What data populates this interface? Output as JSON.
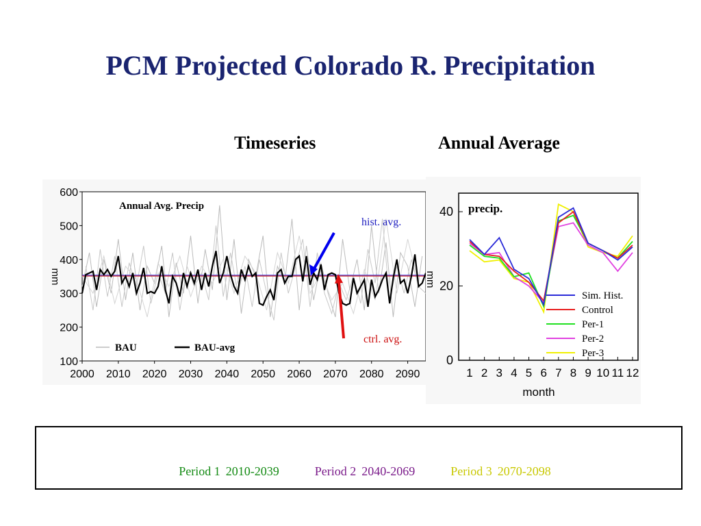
{
  "title": "PCM Projected Colorado R. Precipitation",
  "subtitles": {
    "timeseries": "Timeseries",
    "annual": "Annual Average"
  },
  "annotations": {
    "hist_avg": "hist. avg.",
    "ctrl_avg": "ctrl. avg."
  },
  "colors": {
    "title": "#1a2470",
    "hist_arrow": "#0000ee",
    "ctrl_arrow": "#e01010"
  },
  "periods": [
    {
      "name": "Period 1",
      "years": "2010-2039",
      "color": "#138a13"
    },
    {
      "name": "Period 2",
      "years": "2040-2069",
      "color": "#7a1a8a"
    },
    {
      "name": "Period 3",
      "years": "2070-2098",
      "color": "#c8c800"
    }
  ],
  "chart_data": [
    {
      "type": "line",
      "title": "Annual Avg. Precip",
      "ylabel": "mm",
      "xlim": [
        2000,
        2095
      ],
      "ylim": [
        100,
        600
      ],
      "x_ticks": [
        2000,
        2010,
        2020,
        2030,
        2040,
        2050,
        2060,
        2070,
        2080,
        2090
      ],
      "y_ticks": [
        100,
        200,
        300,
        400,
        500,
        600
      ],
      "legend": [
        "BAU",
        "BAU-avg"
      ],
      "reference_lines": [
        {
          "name": "hist. avg.",
          "y": 353,
          "color": "#3030e0"
        },
        {
          "name": "ctrl. avg.",
          "y": 351,
          "color": "#d04040"
        }
      ],
      "series": [
        {
          "name": "BAU-avg",
          "color": "#000000",
          "x": [
            2000,
            2001,
            2002,
            2003,
            2004,
            2005,
            2006,
            2007,
            2008,
            2009,
            2010,
            2011,
            2012,
            2013,
            2014,
            2015,
            2016,
            2017,
            2018,
            2019,
            2020,
            2021,
            2022,
            2023,
            2024,
            2025,
            2026,
            2027,
            2028,
            2029,
            2030,
            2031,
            2032,
            2033,
            2034,
            2035,
            2036,
            2037,
            2038,
            2039,
            2040,
            2041,
            2042,
            2043,
            2044,
            2045,
            2046,
            2047,
            2048,
            2049,
            2050,
            2051,
            2052,
            2053,
            2054,
            2055,
            2056,
            2057,
            2058,
            2059,
            2060,
            2061,
            2062,
            2063,
            2064,
            2065,
            2066,
            2067,
            2068,
            2069,
            2070,
            2071,
            2072,
            2073,
            2074,
            2075,
            2076,
            2077,
            2078,
            2079,
            2080,
            2081,
            2082,
            2083,
            2084,
            2085,
            2086,
            2087,
            2088,
            2089,
            2090,
            2091,
            2092,
            2093,
            2094,
            2095
          ],
          "y": [
            300,
            355,
            360,
            365,
            310,
            370,
            355,
            370,
            350,
            365,
            410,
            330,
            350,
            320,
            360,
            300,
            330,
            375,
            300,
            305,
            300,
            320,
            380,
            310,
            270,
            350,
            330,
            290,
            360,
            320,
            360,
            330,
            370,
            310,
            360,
            320,
            380,
            425,
            330,
            360,
            410,
            355,
            320,
            300,
            370,
            340,
            380,
            350,
            360,
            270,
            265,
            290,
            310,
            280,
            360,
            370,
            330,
            350,
            350,
            400,
            410,
            335,
            410,
            325,
            360,
            340,
            385,
            310,
            355,
            360,
            355,
            300,
            270,
            265,
            270,
            345,
            300,
            320,
            340,
            260,
            340,
            290,
            310,
            340,
            360,
            270,
            345,
            400,
            330,
            340,
            300,
            350,
            415,
            320,
            330,
            360
          ]
        },
        {
          "name": "BAU",
          "color": "#bbbbbb",
          "x": [
            2000,
            2002,
            2004,
            2006,
            2008,
            2010,
            2012,
            2014,
            2016,
            2018,
            2020,
            2022,
            2024,
            2026,
            2028,
            2030,
            2032,
            2034,
            2036,
            2038,
            2040,
            2042,
            2044,
            2046,
            2048,
            2050,
            2052,
            2054,
            2056,
            2058,
            2060,
            2062,
            2064,
            2066,
            2068,
            2070,
            2072,
            2074,
            2076,
            2078,
            2080,
            2082,
            2084,
            2086,
            2088,
            2090,
            2092,
            2094
          ],
          "y": [
            320,
            420,
            260,
            400,
            300,
            460,
            280,
            420,
            250,
            380,
            330,
            440,
            230,
            390,
            300,
            470,
            270,
            430,
            310,
            560,
            280,
            460,
            240,
            400,
            350,
            470,
            230,
            380,
            330,
            520,
            250,
            440,
            280,
            390,
            300,
            230,
            460,
            310,
            400,
            250,
            500,
            300,
            450,
            230,
            420,
            380,
            260,
            410
          ]
        },
        {
          "name": "BAU",
          "color": "#c8c8c8",
          "x": [
            2001,
            2003,
            2005,
            2007,
            2009,
            2011,
            2013,
            2015,
            2017,
            2019,
            2021,
            2023,
            2025,
            2027,
            2029,
            2031,
            2033,
            2035,
            2037,
            2039,
            2041,
            2043,
            2045,
            2047,
            2049,
            2051,
            2053,
            2055,
            2057,
            2059,
            2061,
            2063,
            2065,
            2067,
            2069,
            2071,
            2073,
            2075,
            2077,
            2079,
            2081,
            2083,
            2085,
            2087,
            2089,
            2091,
            2093,
            2095
          ],
          "y": [
            380,
            250,
            430,
            290,
            410,
            260,
            390,
            320,
            440,
            270,
            360,
            300,
            420,
            250,
            380,
            320,
            360,
            280,
            500,
            290,
            420,
            300,
            380,
            260,
            400,
            300,
            220,
            420,
            300,
            380,
            460,
            260,
            420,
            300,
            240,
            330,
            280,
            350,
            270,
            430,
            330,
            520,
            280,
            380,
            300,
            400,
            320,
            300
          ]
        },
        {
          "name": "BAU",
          "color": "#d4d4d4",
          "x": [
            2000,
            2003,
            2006,
            2009,
            2012,
            2015,
            2018,
            2021,
            2024,
            2027,
            2030,
            2033,
            2036,
            2039,
            2042,
            2045,
            2048,
            2051,
            2054,
            2057,
            2060,
            2063,
            2066,
            2069,
            2072,
            2075,
            2078,
            2081,
            2084,
            2087,
            2090,
            2093
          ],
          "y": [
            350,
            300,
            410,
            270,
            380,
            340,
            230,
            390,
            320,
            410,
            290,
            380,
            330,
            400,
            300,
            410,
            360,
            250,
            420,
            330,
            470,
            300,
            360,
            280,
            330,
            240,
            370,
            280,
            520,
            300,
            460,
            330
          ]
        }
      ]
    },
    {
      "type": "line",
      "title": "precip.",
      "xlabel": "month",
      "ylabel": "mm",
      "categories": [
        "1",
        "2",
        "3",
        "4",
        "5",
        "6",
        "7",
        "8",
        "9",
        "10",
        "11",
        "12"
      ],
      "ylim": [
        0,
        45
      ],
      "y_ticks": [
        0,
        20,
        40
      ],
      "legend_position": "bottom-right",
      "series": [
        {
          "name": "Sim. Hist.",
          "color": "#2a2ad8",
          "values": [
            32.5,
            28.5,
            33,
            24.5,
            22,
            15,
            38.5,
            41,
            31.5,
            29.5,
            27,
            30.5
          ]
        },
        {
          "name": "Control",
          "color": "#e82020",
          "values": [
            32,
            28.5,
            28,
            24,
            21,
            16,
            37,
            40,
            31.5,
            29.5,
            27.5,
            31
          ]
        },
        {
          "name": "Per-1",
          "color": "#20e020",
          "values": [
            31,
            28,
            27.5,
            22.5,
            23.5,
            14.5,
            37.5,
            39,
            31.5,
            29.5,
            27.5,
            32
          ]
        },
        {
          "name": "Per-2",
          "color": "#e040e0",
          "values": [
            31.5,
            28.5,
            29,
            22.5,
            20,
            15.5,
            36,
            37,
            31,
            29,
            24,
            29
          ]
        },
        {
          "name": "Per-3",
          "color": "#f0f000",
          "values": [
            29.5,
            26.5,
            27,
            22,
            21,
            13,
            42,
            40,
            30.5,
            29,
            28,
            33.5
          ]
        }
      ]
    }
  ]
}
